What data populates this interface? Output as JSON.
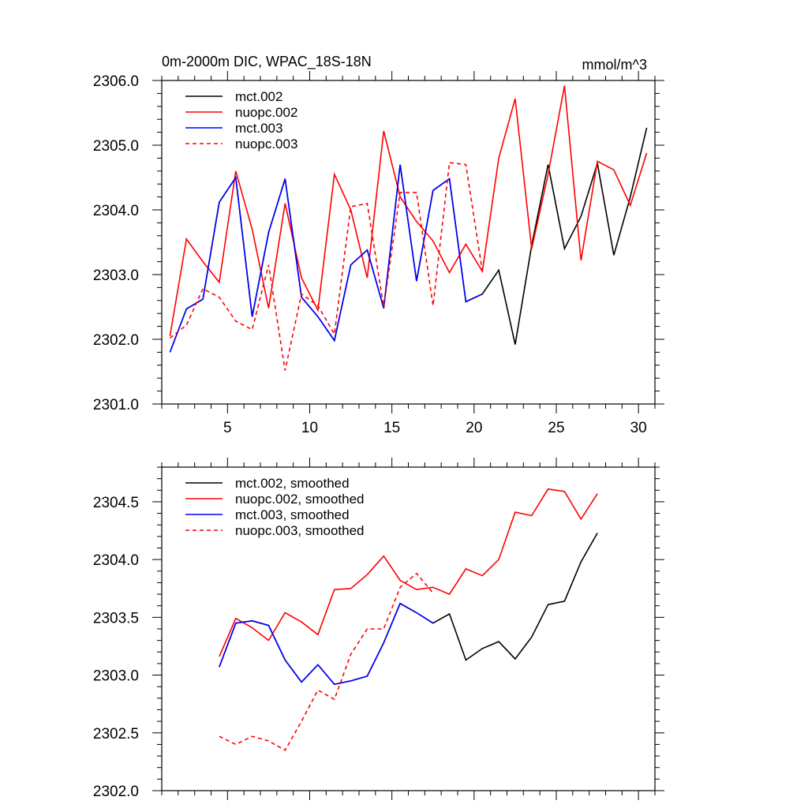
{
  "chart_data": [
    {
      "type": "line",
      "title": "0m-2000m DIC, WPAC_18S-18N",
      "units": "mmol/m^3",
      "xlabel": "",
      "ylabel": "",
      "xlim": [
        1,
        31
      ],
      "ylim": [
        2301.0,
        2306.0
      ],
      "xticks": [
        5,
        10,
        15,
        20,
        25,
        30
      ],
      "xtick_labels": [
        "5",
        "10",
        "15",
        "20",
        "25",
        "30"
      ],
      "yticks": [
        2301.0,
        2302.0,
        2303.0,
        2304.0,
        2305.0,
        2306.0
      ],
      "ytick_labels": [
        "2301.0",
        "2302.0",
        "2303.0",
        "2304.0",
        "2305.0",
        "2306.0"
      ],
      "legend_position": "top-left",
      "series": [
        {
          "name": "mct.002",
          "color": "#000000",
          "dash": "solid",
          "x": [
            1.5,
            2.5,
            3.5,
            4.5,
            5.5,
            6.5,
            7.5,
            8.5,
            9.5,
            10.5,
            11.5,
            12.5,
            13.5,
            14.5,
            15.5,
            16.5,
            17.5,
            18.5,
            19.5,
            20.5,
            21.5,
            22.5,
            23.5,
            24.5,
            25.5,
            26.5,
            27.5,
            28.5,
            29.5,
            30.5
          ],
          "values": [
            2301.8,
            2302.47,
            2302.62,
            2304.12,
            2304.5,
            2302.35,
            2303.65,
            2304.48,
            2302.65,
            2302.35,
            2301.98,
            2303.15,
            2303.38,
            2302.48,
            2304.7,
            2302.9,
            2304.3,
            2304.48,
            2302.58,
            2302.7,
            2303.07,
            2301.92,
            2303.45,
            2304.7,
            2303.4,
            2303.9,
            2304.72,
            2303.3,
            2304.2,
            2305.27
          ]
        },
        {
          "name": "nuopc.002",
          "color": "#ff0000",
          "dash": "solid",
          "x": [
            1.5,
            2.5,
            3.5,
            4.5,
            5.5,
            6.5,
            7.5,
            8.5,
            9.5,
            10.5,
            11.5,
            12.5,
            13.5,
            14.5,
            15.5,
            16.5,
            17.5,
            18.5,
            19.5,
            20.5,
            21.5,
            22.5,
            23.5,
            24.5,
            25.5,
            26.5,
            27.5,
            28.5,
            29.5,
            30.5
          ],
          "values": [
            2302.05,
            2303.55,
            2303.2,
            2302.88,
            2304.6,
            2303.7,
            2302.48,
            2304.1,
            2302.95,
            2302.45,
            2304.55,
            2304.0,
            2302.95,
            2305.22,
            2304.2,
            2303.82,
            2303.52,
            2303.03,
            2303.47,
            2303.05,
            2304.8,
            2305.72,
            2303.4,
            2304.55,
            2305.92,
            2303.22,
            2304.75,
            2304.62,
            2304.07,
            2304.88
          ]
        },
        {
          "name": "mct.003",
          "color": "#0000ff",
          "dash": "solid",
          "x": [
            1.5,
            2.5,
            3.5,
            4.5,
            5.5,
            6.5,
            7.5,
            8.5,
            9.5,
            10.5,
            11.5,
            12.5,
            13.5,
            14.5,
            15.5,
            16.5,
            17.5,
            18.5,
            19.5,
            20.5
          ],
          "values": [
            2301.8,
            2302.47,
            2302.62,
            2304.12,
            2304.5,
            2302.35,
            2303.65,
            2304.48,
            2302.65,
            2302.35,
            2301.98,
            2303.15,
            2303.38,
            2302.48,
            2304.7,
            2302.9,
            2304.3,
            2304.48,
            2302.58,
            2302.7
          ]
        },
        {
          "name": "nuopc.003",
          "color": "#ff0000",
          "dash": "dashed",
          "x": [
            1.5,
            2.5,
            3.5,
            4.5,
            5.5,
            6.5,
            7.5,
            8.5,
            9.5,
            10.5,
            11.5,
            12.5,
            13.5,
            14.5,
            15.5,
            16.5,
            17.5,
            18.5,
            19.5,
            20.5
          ],
          "values": [
            2302.02,
            2302.22,
            2302.78,
            2302.65,
            2302.28,
            2302.15,
            2303.15,
            2301.52,
            2302.7,
            2302.52,
            2302.08,
            2304.05,
            2304.1,
            2302.5,
            2304.27,
            2304.27,
            2302.52,
            2304.73,
            2304.7,
            2303.05
          ]
        }
      ]
    },
    {
      "type": "line",
      "title": "",
      "xlabel": "",
      "ylabel": "",
      "xlim": [
        1,
        31
      ],
      "ylim": [
        2302.0,
        2304.8
      ],
      "xticks": [
        5,
        10,
        15,
        20,
        25,
        30
      ],
      "xtick_labels": [],
      "yticks": [
        2302.0,
        2302.5,
        2303.0,
        2303.5,
        2304.0,
        2304.5
      ],
      "ytick_labels": [
        "2302.0",
        "2302.5",
        "2303.0",
        "2303.5",
        "2304.0",
        "2304.5"
      ],
      "legend_position": "top-left",
      "series": [
        {
          "name": "mct.002, smoothed",
          "color": "#000000",
          "dash": "solid",
          "x": [
            4.5,
            5.5,
            6.5,
            7.5,
            8.5,
            9.5,
            10.5,
            11.5,
            12.5,
            13.5,
            14.5,
            15.5,
            16.5,
            17.5,
            18.5,
            19.5,
            20.5,
            21.5,
            22.5,
            23.5,
            24.5,
            25.5,
            26.5,
            27.5
          ],
          "values": [
            2303.07,
            2303.45,
            2303.47,
            2303.43,
            2303.13,
            2302.94,
            2303.09,
            2302.92,
            2302.95,
            2302.99,
            2303.28,
            2303.62,
            2303.54,
            2303.45,
            2303.53,
            2303.13,
            2303.23,
            2303.29,
            2303.14,
            2303.33,
            2303.61,
            2303.64,
            2303.98,
            2304.23
          ]
        },
        {
          "name": "nuopc.002, smoothed",
          "color": "#ff0000",
          "dash": "solid",
          "x": [
            4.5,
            5.5,
            6.5,
            7.5,
            8.5,
            9.5,
            10.5,
            11.5,
            12.5,
            13.5,
            14.5,
            15.5,
            16.5,
            17.5,
            18.5,
            19.5,
            20.5,
            21.5,
            22.5,
            23.5,
            24.5,
            25.5,
            26.5,
            27.5
          ],
          "values": [
            2303.16,
            2303.49,
            2303.41,
            2303.3,
            2303.54,
            2303.46,
            2303.35,
            2303.74,
            2303.75,
            2303.87,
            2304.03,
            2303.82,
            2303.74,
            2303.76,
            2303.7,
            2303.92,
            2303.86,
            2304.0,
            2304.41,
            2304.38,
            2304.61,
            2304.59,
            2304.35,
            2304.57
          ]
        },
        {
          "name": "mct.003, smoothed",
          "color": "#0000ff",
          "dash": "solid",
          "x": [
            4.5,
            5.5,
            6.5,
            7.5,
            8.5,
            9.5,
            10.5,
            11.5,
            12.5,
            13.5,
            14.5,
            15.5,
            16.5,
            17.5
          ],
          "values": [
            2303.07,
            2303.45,
            2303.47,
            2303.43,
            2303.13,
            2302.94,
            2303.09,
            2302.92,
            2302.95,
            2302.99,
            2303.28,
            2303.62,
            2303.54,
            2303.45
          ]
        },
        {
          "name": "nuopc.003, smoothed",
          "color": "#ff0000",
          "dash": "dashed",
          "x": [
            4.5,
            5.5,
            6.5,
            7.5,
            8.5,
            9.5,
            10.5,
            11.5,
            12.5,
            13.5,
            14.5,
            15.5,
            16.5,
            17.5
          ],
          "values": [
            2302.47,
            2302.4,
            2302.47,
            2302.43,
            2302.35,
            2302.6,
            2302.87,
            2302.79,
            2303.18,
            2303.4,
            2303.4,
            2303.76,
            2303.88,
            2303.71
          ]
        }
      ]
    }
  ]
}
